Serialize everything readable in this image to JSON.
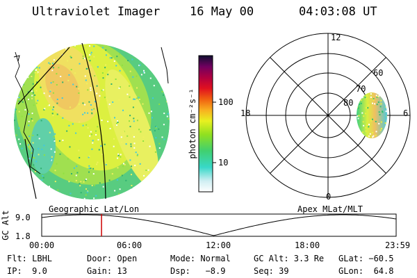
{
  "header": {
    "instrument": "Ultraviolet Imager",
    "date": "16 May 00",
    "time": "04:03:08 UT"
  },
  "colorbar": {
    "unit_label": "photon cm⁻²s⁻¹",
    "ticks": [
      "100",
      "10"
    ]
  },
  "polar_plot": {
    "mlt_labels": [
      "12",
      "18",
      "6",
      "0"
    ],
    "mlat_labels": [
      "60",
      "70",
      "80"
    ]
  },
  "altitude_plot": {
    "ylabel": "GC Alt",
    "yticks": [
      "9.0",
      "1.8"
    ],
    "left_caption": "Geographic Lat/Lon",
    "right_caption": "Apex MLat/MLT",
    "xticks": [
      "00:00",
      "06:00",
      "12:00",
      "18:00",
      "23:59"
    ],
    "current_time_marker_hour": 4.05
  },
  "info": {
    "row1": {
      "flt": "Flt: LBHL",
      "door": "Door: Open",
      "mode": "Mode: Normal",
      "gcalt": "GC Alt: 3.3 Re",
      "glat": "GLat: −60.5"
    },
    "row2": {
      "ip": "IP:  9.0",
      "gain": "Gain: 13",
      "dsp": "Dsp:   −8.9",
      "seq": "Seq: 39",
      "glon": "GLon:  64.8"
    }
  },
  "colors": {
    "gridline": "#000000",
    "marker": "#cc0000"
  }
}
